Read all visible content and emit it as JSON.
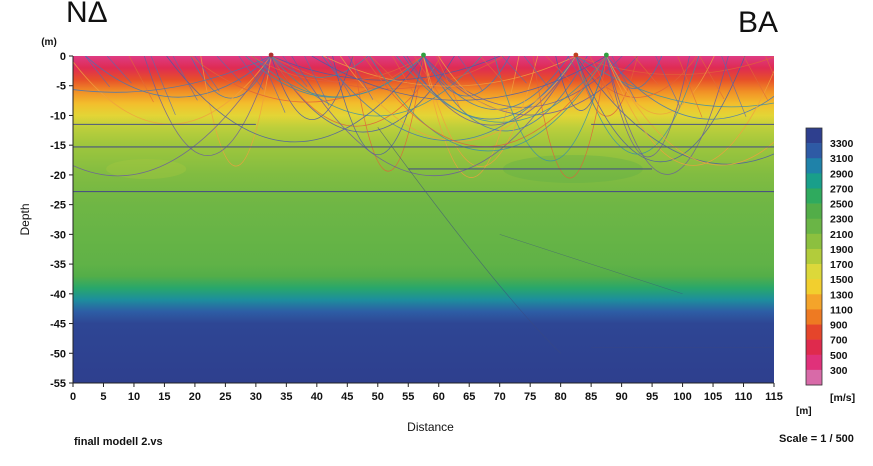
{
  "chart_data": {
    "type": "heatmap",
    "title_left": "NΔ",
    "title_right": "BA",
    "xlabel": "Distance",
    "ylabel": "Depth",
    "x_unit": "[m]",
    "y_unit": "(m)",
    "xlim": [
      0,
      115
    ],
    "ylim": [
      -55,
      0
    ],
    "xticks": [
      0,
      5,
      10,
      15,
      20,
      25,
      30,
      35,
      40,
      45,
      50,
      55,
      60,
      65,
      70,
      75,
      80,
      85,
      90,
      95,
      100,
      105,
      110,
      115
    ],
    "yticks": [
      0,
      -5,
      -10,
      -15,
      -20,
      -25,
      -30,
      -35,
      -40,
      -45,
      -50,
      -55
    ],
    "colorbar": {
      "unit": "[m/s]",
      "labels": [
        3300,
        3100,
        2900,
        2700,
        2500,
        2300,
        2100,
        1900,
        1700,
        1500,
        1300,
        1100,
        900,
        700,
        500,
        300
      ],
      "colors": [
        "#2e3f8e",
        "#2e5aa5",
        "#1f82a9",
        "#199f8a",
        "#2faa5e",
        "#52ad48",
        "#6ab546",
        "#8cc03f",
        "#b2cc3b",
        "#dcd83a",
        "#f2cf2e",
        "#f4a42a",
        "#ee7a22",
        "#e5452b",
        "#df2a4d",
        "#e0317a",
        "#d86aa8"
      ]
    },
    "velocity_profile": [
      {
        "depth": 0,
        "velocity": 450
      },
      {
        "depth": -2,
        "velocity": 650
      },
      {
        "depth": -4,
        "velocity": 900
      },
      {
        "depth": -6,
        "velocity": 1150
      },
      {
        "depth": -8,
        "velocity": 1350
      },
      {
        "depth": -10,
        "velocity": 1550
      },
      {
        "depth": -12,
        "velocity": 1750
      },
      {
        "depth": -15,
        "velocity": 1900
      },
      {
        "depth": -20,
        "velocity": 2050
      },
      {
        "depth": -25,
        "velocity": 2150
      },
      {
        "depth": -30,
        "velocity": 2200
      },
      {
        "depth": -35,
        "velocity": 2250
      },
      {
        "depth": -37,
        "velocity": 2350
      },
      {
        "depth": -39,
        "velocity": 2600
      },
      {
        "depth": -41,
        "velocity": 2850
      },
      {
        "depth": -43,
        "velocity": 3100
      },
      {
        "depth": -45,
        "velocity": 3250
      },
      {
        "depth": -55,
        "velocity": 3300
      }
    ],
    "interfaces": [
      {
        "depth": -11.5,
        "x": [
          0,
          30
        ]
      },
      {
        "depth": -11.5,
        "x": [
          85,
          115
        ]
      },
      {
        "depth": -15.3,
        "x": [
          0,
          115
        ]
      },
      {
        "depth": -22.8,
        "x": [
          0,
          115
        ]
      },
      {
        "depth": -19,
        "x": [
          55,
          95
        ]
      }
    ],
    "shots": [
      {
        "x": 32.5,
        "color": "#b03030"
      },
      {
        "x": 57.5,
        "color": "#30a040"
      },
      {
        "x": 82.5,
        "color": "#c04020"
      },
      {
        "x": 87.5,
        "color": "#30a040"
      }
    ]
  },
  "footer": {
    "model_name": "finall modell 2.vs",
    "scale": "Scale = 1 / 500"
  }
}
